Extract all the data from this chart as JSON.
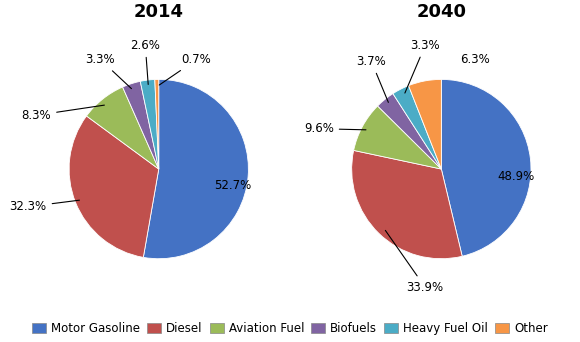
{
  "title_2014": "2014",
  "title_2040": "2040",
  "categories": [
    "Motor Gasoline",
    "Diesel",
    "Aviation Fuel",
    "Biofuels",
    "Heavy Fuel Oil",
    "Other"
  ],
  "colors": [
    "#4472C4",
    "#C0504D",
    "#9BBB59",
    "#8064A2",
    "#4BACC6",
    "#F79646"
  ],
  "values_2014": [
    52.7,
    32.3,
    8.3,
    3.3,
    2.6,
    0.7
  ],
  "values_2040": [
    48.9,
    33.9,
    9.6,
    3.7,
    3.3,
    6.3
  ],
  "startangle": 90,
  "background_color": "#ffffff",
  "title_fontsize": 13,
  "title_fontweight": "bold",
  "label_fontsize": 8.5,
  "legend_fontsize": 8.5,
  "custom_labels_2014": [
    {
      "label": "52.7%",
      "xt": 0.62,
      "yt": -0.18,
      "ha": "left",
      "va": "center",
      "arrow": false
    },
    {
      "label": "32.3%",
      "xt": -1.25,
      "yt": -0.42,
      "ha": "right",
      "va": "center",
      "arrow": true
    },
    {
      "label": "8.3%",
      "xt": -1.2,
      "yt": 0.6,
      "ha": "right",
      "va": "center",
      "arrow": true
    },
    {
      "label": "3.3%",
      "xt": -0.65,
      "yt": 1.22,
      "ha": "center",
      "va": "center",
      "arrow": true
    },
    {
      "label": "2.6%",
      "xt": -0.15,
      "yt": 1.38,
      "ha": "center",
      "va": "center",
      "arrow": true
    },
    {
      "label": "0.7%",
      "xt": 0.42,
      "yt": 1.22,
      "ha": "center",
      "va": "center",
      "arrow": true
    }
  ],
  "custom_labels_2040": [
    {
      "label": "48.9%",
      "xt": 0.62,
      "yt": -0.08,
      "ha": "left",
      "va": "center",
      "arrow": false
    },
    {
      "label": "33.9%",
      "xt": -0.18,
      "yt": -1.32,
      "ha": "center",
      "va": "center",
      "arrow": true
    },
    {
      "label": "9.6%",
      "xt": -1.2,
      "yt": 0.45,
      "ha": "right",
      "va": "center",
      "arrow": true
    },
    {
      "label": "3.7%",
      "xt": -0.78,
      "yt": 1.2,
      "ha": "center",
      "va": "center",
      "arrow": true
    },
    {
      "label": "3.3%",
      "xt": -0.18,
      "yt": 1.38,
      "ha": "center",
      "va": "center",
      "arrow": true
    },
    {
      "label": "6.3%",
      "xt": 0.38,
      "yt": 1.22,
      "ha": "center",
      "va": "center",
      "arrow": false
    }
  ]
}
